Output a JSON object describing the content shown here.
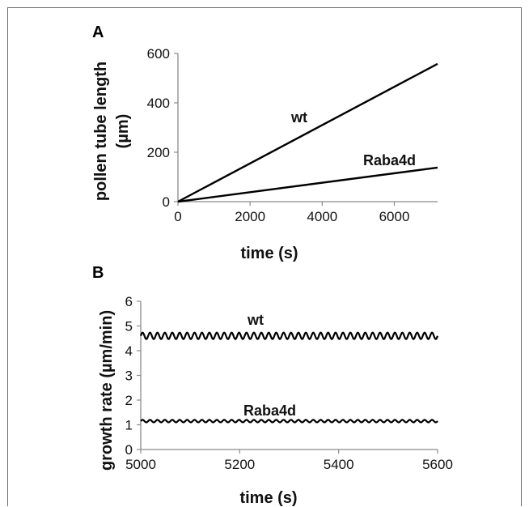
{
  "chart_data": [
    {
      "panel": "A",
      "type": "line",
      "xlabel": "time (s)",
      "ylabel": [
        "pollen tube length",
        "(µm)"
      ],
      "xlim": [
        0,
        7200
      ],
      "ylim": [
        0,
        600
      ],
      "xticks": [
        0,
        2000,
        4000,
        6000
      ],
      "yticks": [
        0,
        200,
        400,
        600
      ],
      "series": [
        {
          "name": "wt",
          "x": [
            0,
            7200
          ],
          "y": [
            0,
            558
          ]
        },
        {
          "name": "Raba4d",
          "x": [
            0,
            7200
          ],
          "y": [
            0,
            138
          ]
        }
      ]
    },
    {
      "panel": "B",
      "type": "line",
      "xlabel": "time (s)",
      "ylabel": "growth rate (µm/min)",
      "xlim": [
        5000,
        5600
      ],
      "ylim": [
        0,
        6
      ],
      "xticks": [
        5000,
        5200,
        5400,
        5600
      ],
      "yticks": [
        0,
        1,
        2,
        3,
        4,
        5,
        6
      ],
      "series": [
        {
          "name": "wt",
          "mean": 4.6,
          "amplitude": 0.13,
          "period_s": 15
        },
        {
          "name": "Raba4d",
          "mean": 1.15,
          "amplitude": 0.05,
          "period_s": 15
        }
      ]
    }
  ]
}
